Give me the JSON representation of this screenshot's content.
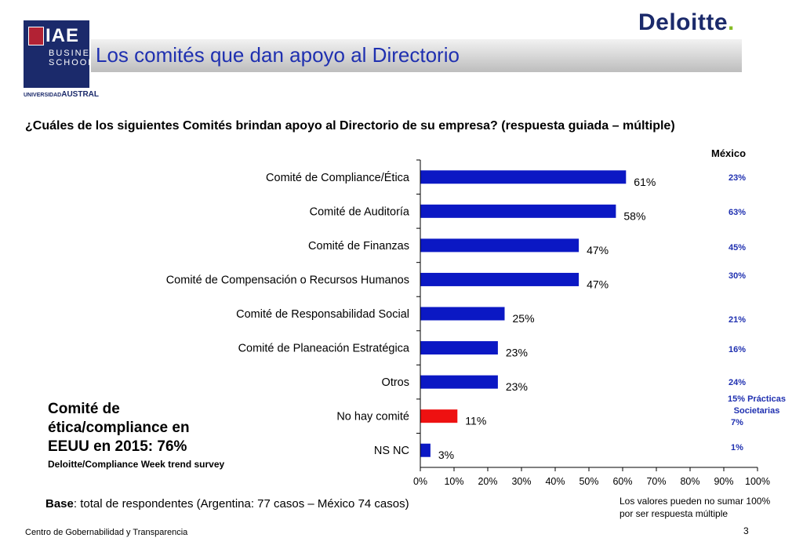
{
  "header": {
    "title": "Los comités que dan apoyo al Directorio",
    "logo_iae_top": "IAE",
    "logo_iae_line2": "BUSINESS",
    "logo_iae_line3": "SCHOOL",
    "logo_austral_small": "UNIVERSIDAD",
    "logo_austral_big": "AUSTRAL",
    "logo_deloitte": "Deloitte",
    "logo_deloitte_dot": "."
  },
  "question": "¿Cuáles de los siguientes Comités brindan apoyo al Directorio de su empresa? (respuesta guiada – múltiple)",
  "chart_data": {
    "type": "bar",
    "orientation": "horizontal",
    "categories": [
      "Comité de Compliance/Ética",
      "Comité de Auditoría",
      "Comité de Finanzas",
      "Comité de Compensación o Recursos Humanos",
      "Comité de Responsabilidad Social",
      "Comité de Planeación  Estratégica",
      "Otros",
      "No hay comité",
      "NS NC"
    ],
    "values": [
      61,
      58,
      47,
      47,
      25,
      23,
      23,
      11,
      3
    ],
    "value_labels": [
      "61%",
      "58%",
      "47%",
      "47%",
      "25%",
      "23%",
      "23%",
      "11%",
      "3%"
    ],
    "bar_colors": [
      "#0b18c4",
      "#0b18c4",
      "#0b18c4",
      "#0b18c4",
      "#0b18c4",
      "#0b18c4",
      "#0b18c4",
      "#ee1111",
      "#0b18c4"
    ],
    "xlim": [
      0,
      100
    ],
    "xticks": [
      "0%",
      "10%",
      "20%",
      "30%",
      "40%",
      "50%",
      "60%",
      "70%",
      "80%",
      "90%",
      "100%"
    ],
    "grid": false
  },
  "mexico": {
    "header": "México",
    "values": [
      "23%",
      "63%",
      "45%",
      "30%",
      "21%",
      "16%",
      "24%",
      "7%",
      "1%"
    ],
    "note_line1": "15% Prácticas",
    "note_line2": "Societarias"
  },
  "callout": {
    "line1": "Comité de",
    "line2": "ética/compliance en",
    "line3": "EEUU en 2015: 76%",
    "source": "Deloitte/Compliance Week trend survey"
  },
  "base": {
    "label": "Base",
    "text": ": total de respondentes (Argentina: 77 casos – México 74 casos)"
  },
  "note": {
    "line1": "Los valores pueden no sumar 100%",
    "line2": "por ser respuesta múltiple"
  },
  "footer": "Centro de Gobernabilidad y Transparencia",
  "page_number": "3"
}
